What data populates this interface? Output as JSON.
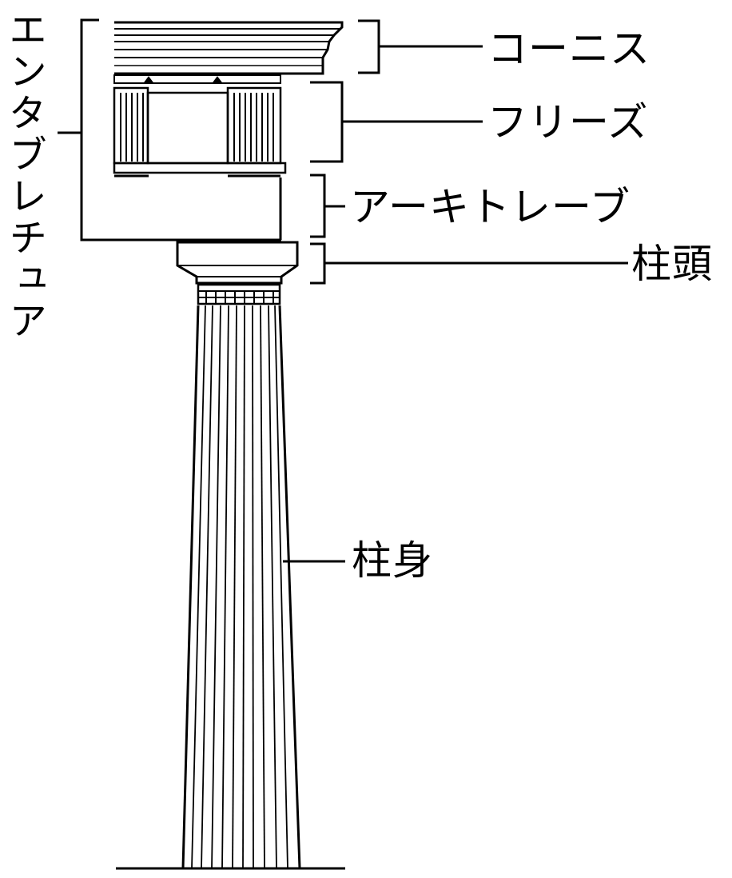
{
  "labels": {
    "cornice": "コーニス",
    "frieze": "フリーズ",
    "architrave": "アーキトレーブ",
    "capital": "柱頭",
    "shaft": "柱身",
    "entablature": "エンタブレチュア"
  },
  "colors": {
    "ink": "#000000",
    "paper": "#ffffff"
  }
}
